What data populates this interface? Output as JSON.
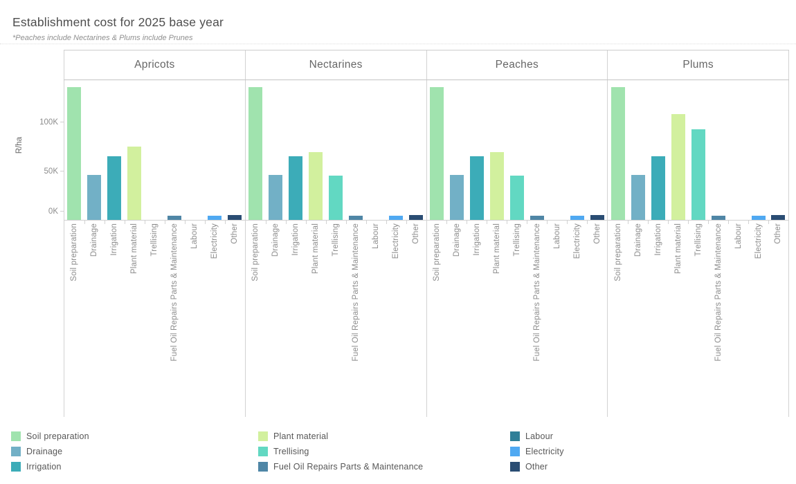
{
  "header": {
    "title": "Establishment cost for 2025 base year",
    "subtitle": "*Peaches include Nectarines & Plums include Prunes"
  },
  "y_axis": {
    "label": "R/ha",
    "ticks": [
      {
        "value": 0,
        "label": "0K"
      },
      {
        "value": 50000,
        "label": "50K"
      },
      {
        "value": 100000,
        "label": "100K"
      }
    ]
  },
  "chart_data": {
    "type": "bar",
    "title": "Establishment cost for 2025 base year",
    "subtitle": "*Peaches include Nectarines & Plums include Prunes",
    "ylabel": "R/ha",
    "ylim": [
      0,
      143000
    ],
    "yticks": [
      0,
      50000,
      100000
    ],
    "ytick_labels": [
      "0K",
      "50K",
      "100K"
    ],
    "grid": false,
    "legend_position": "bottom",
    "categories": [
      "Soil preparation",
      "Drainage",
      "Irrigation",
      "Plant material",
      "Trellising",
      "Fuel Oil Repairs Parts & Maintenance",
      "Labour",
      "Electricity",
      "Other"
    ],
    "facets": [
      {
        "name": "Apricots",
        "values": [
          135000,
          46000,
          65000,
          75000,
          0,
          4500,
          0,
          4000,
          5000
        ]
      },
      {
        "name": "Nectarines",
        "values": [
          135000,
          46000,
          65000,
          69000,
          45000,
          4500,
          0,
          4000,
          5000
        ]
      },
      {
        "name": "Peaches",
        "values": [
          135000,
          46000,
          65000,
          69000,
          45000,
          4500,
          0,
          4000,
          5000
        ]
      },
      {
        "name": "Plums",
        "values": [
          135000,
          46000,
          65000,
          108000,
          92000,
          4500,
          0,
          4500,
          5000
        ]
      }
    ],
    "series_colors": {
      "Soil preparation": "#a0e3ae",
      "Drainage": "#72b0c6",
      "Irrigation": "#3cacb8",
      "Plant material": "#d2f09e",
      "Trellising": "#62d8c2",
      "Fuel Oil Repairs Parts & Maintenance": "#4f86a6",
      "Labour": "#2f7f98",
      "Electricity": "#4fa9f2",
      "Other": "#2a4d73"
    },
    "legend_columns": [
      [
        "Soil preparation",
        "Drainage",
        "Irrigation"
      ],
      [
        "Plant material",
        "Trellising",
        "Fuel Oil Repairs Parts & Maintenance"
      ],
      [
        "Labour",
        "Electricity",
        "Other"
      ]
    ]
  }
}
